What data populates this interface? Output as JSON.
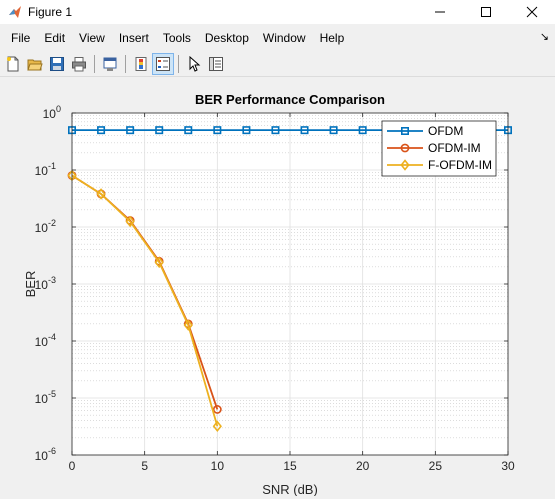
{
  "window": {
    "title": "Figure 1",
    "controls": [
      "—",
      "☐",
      "✕"
    ]
  },
  "menu": {
    "items": [
      "File",
      "Edit",
      "View",
      "Insert",
      "Tools",
      "Desktop",
      "Window",
      "Help"
    ],
    "overflow_arrow": "↘"
  },
  "toolbar": {
    "buttons": [
      {
        "name": "new-figure-icon"
      },
      {
        "name": "open-file-icon"
      },
      {
        "name": "save-icon"
      },
      {
        "name": "print-icon"
      },
      {
        "name": "link-plot-icon"
      },
      {
        "name": "insert-colorbar-icon"
      },
      {
        "name": "insert-legend-icon",
        "pressed": true
      },
      {
        "name": "edit-plot-cursor-icon"
      },
      {
        "name": "property-inspector-icon"
      }
    ]
  },
  "chart_data": {
    "type": "line",
    "title": "BER Performance Comparison",
    "xlabel": "SNR (dB)",
    "ylabel": "BER",
    "xlim": [
      0,
      30
    ],
    "ylim": [
      1e-06,
      1
    ],
    "yscale": "log",
    "grid": true,
    "minor_grid": true,
    "legend_position": "top-right",
    "x_ticks": [
      "0",
      "5",
      "10",
      "15",
      "20",
      "25",
      "30"
    ],
    "y_ticks": [
      {
        "base": "10",
        "exp": "0"
      },
      {
        "base": "10",
        "exp": "-1"
      },
      {
        "base": "10",
        "exp": "-2"
      },
      {
        "base": "10",
        "exp": "-3"
      },
      {
        "base": "10",
        "exp": "-4"
      },
      {
        "base": "10",
        "exp": "-5"
      },
      {
        "base": "10",
        "exp": "-6"
      }
    ],
    "series": [
      {
        "name": "OFDM",
        "color": "#0072bd",
        "marker": "square",
        "x": [
          0,
          2,
          4,
          6,
          8,
          10,
          12,
          14,
          16,
          18,
          20,
          22,
          24,
          26,
          28,
          30
        ],
        "y": [
          0.5,
          0.5,
          0.5,
          0.5,
          0.5,
          0.5,
          0.5,
          0.5,
          0.5,
          0.5,
          0.5,
          0.5,
          0.5,
          0.5,
          0.5,
          0.5
        ]
      },
      {
        "name": "OFDM-IM",
        "color": "#d95319",
        "marker": "circle",
        "x": [
          0,
          2,
          4,
          6,
          8,
          10
        ],
        "y": [
          0.08,
          0.038,
          0.013,
          0.0025,
          0.0002,
          6.3e-06
        ]
      },
      {
        "name": "F-OFDM-IM",
        "color": "#edb120",
        "marker": "diamond",
        "x": [
          0,
          2,
          4,
          6,
          8,
          10
        ],
        "y": [
          0.08,
          0.038,
          0.0125,
          0.0024,
          0.00019,
          3.2e-06
        ]
      }
    ]
  }
}
